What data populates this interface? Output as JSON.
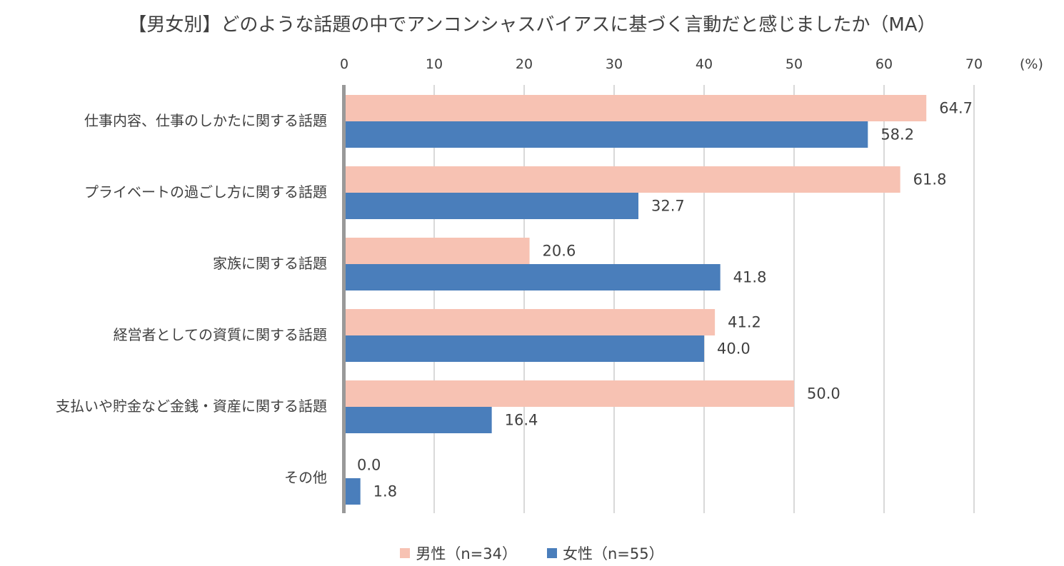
{
  "chart_data": {
    "type": "bar",
    "orientation": "horizontal",
    "title": "【男女別】どのような話題の中でアンコンシャスバイアスに基づく言動だと感じましたか（MA）",
    "unit": "(%)",
    "xlim": [
      0,
      70
    ],
    "ticks": [
      0,
      10,
      20,
      30,
      40,
      50,
      60,
      70
    ],
    "categories": [
      "仕事内容、仕事のしかたに関する話題",
      "プライベートの過ごし方に関する話題",
      "家族に関する話題",
      "経営者としての資質に関する話題",
      "支払いや貯金など金銭・資産に関する話題",
      "その他"
    ],
    "series": [
      {
        "name": "男性（n=34）",
        "color": "#f7c2b3",
        "values": [
          "64.7",
          "61.8",
          "20.6",
          "41.2",
          "50.0",
          "0.0"
        ]
      },
      {
        "name": "女性（n=55）",
        "color": "#4a7ebb",
        "values": [
          "58.2",
          "32.7",
          "41.8",
          "40.0",
          "16.4",
          "1.8"
        ]
      }
    ],
    "grid": true,
    "legend_position": "bottom"
  }
}
